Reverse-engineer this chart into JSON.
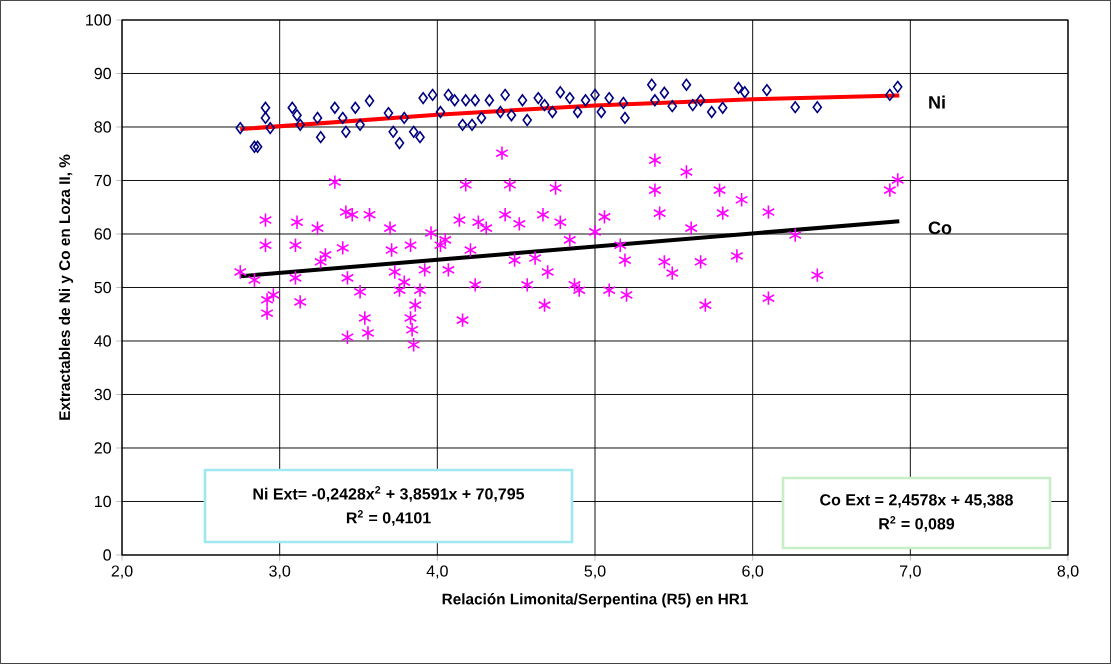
{
  "chart_data": {
    "type": "scatter",
    "xlabel": "Relación Limonita/Serpentina (R5) en HR1",
    "ylabel": "Extractables de Ni y Co en Loza II, %",
    "xlim": [
      2,
      8
    ],
    "xticks": [
      {
        "value": 2,
        "label": "2,0"
      },
      {
        "value": 3,
        "label": "3,0"
      },
      {
        "value": 4,
        "label": "4,0"
      },
      {
        "value": 5,
        "label": "5,0"
      },
      {
        "value": 6,
        "label": "6,0"
      },
      {
        "value": 7,
        "label": "7,0"
      },
      {
        "value": 8,
        "label": "8,0"
      }
    ],
    "ylim": [
      0,
      100
    ],
    "yticks": [
      0,
      10,
      20,
      30,
      40,
      50,
      60,
      70,
      80,
      90,
      100
    ],
    "grid": true,
    "series": [
      {
        "name": "Ni",
        "marker": "diamond",
        "color": "#000080",
        "x": [
          2.75,
          2.84,
          2.86,
          2.91,
          2.91,
          2.94,
          3.08,
          3.11,
          3.13,
          3.24,
          3.26,
          3.35,
          3.4,
          3.42,
          3.48,
          3.51,
          3.57,
          3.69,
          3.72,
          3.76,
          3.79,
          3.85,
          3.89,
          3.91,
          3.97,
          4.02,
          4.07,
          4.11,
          4.16,
          4.18,
          4.22,
          4.24,
          4.28,
          4.33,
          4.4,
          4.43,
          4.47,
          4.54,
          4.57,
          4.64,
          4.68,
          4.73,
          4.78,
          4.84,
          4.89,
          4.94,
          5.0,
          5.04,
          5.09,
          5.18,
          5.19,
          5.36,
          5.38,
          5.44,
          5.49,
          5.58,
          5.62,
          5.67,
          5.74,
          5.81,
          5.91,
          5.95,
          6.09,
          6.27,
          6.41,
          6.87,
          6.92
        ],
        "values": [
          79.8,
          76.3,
          76.3,
          83.6,
          81.7,
          79.8,
          83.6,
          82.2,
          80.4,
          81.7,
          78.1,
          83.6,
          81.7,
          79.1,
          83.6,
          80.4,
          84.9,
          82.6,
          79.1,
          77.0,
          81.7,
          79.1,
          78.1,
          85.4,
          86.0,
          82.8,
          86.0,
          85.0,
          80.4,
          85.0,
          80.4,
          85.0,
          81.7,
          85.0,
          82.8,
          86.0,
          82.2,
          85.0,
          81.3,
          85.4,
          84.1,
          82.8,
          86.5,
          85.4,
          82.8,
          85.0,
          86.0,
          82.8,
          85.4,
          84.5,
          81.7,
          87.9,
          85.0,
          86.4,
          83.9,
          87.9,
          84.1,
          85.0,
          82.8,
          83.6,
          87.3,
          86.5,
          86.9,
          83.7,
          83.7,
          86.0,
          87.5
        ]
      },
      {
        "type": "line",
        "color": "#ff0000",
        "marker": "none",
        "line_style": "solid",
        "x": [
          2.75,
          4.0,
          5.0,
          6.0,
          6.93
        ],
        "values": [
          79.6,
          82.3,
          84.0,
          85.2,
          85.9
        ]
      },
      {
        "name": "Co",
        "marker": "cross",
        "color": "#ff00ff",
        "x": [
          2.75,
          2.84,
          2.91,
          2.91,
          2.92,
          2.92,
          2.96,
          3.11,
          3.1,
          3.13,
          3.1,
          3.24,
          3.26,
          3.29,
          3.35,
          3.42,
          3.46,
          3.4,
          3.43,
          3.51,
          3.57,
          3.54,
          3.56,
          3.43,
          3.7,
          3.71,
          3.73,
          3.76,
          3.79,
          3.83,
          3.83,
          3.84,
          3.85,
          3.86,
          3.89,
          3.92,
          3.96,
          4.02,
          4.05,
          4.07,
          4.14,
          4.16,
          4.18,
          4.21,
          4.24,
          4.26,
          4.31,
          4.41,
          4.43,
          4.46,
          4.49,
          4.52,
          4.57,
          4.62,
          4.67,
          4.68,
          4.7,
          4.75,
          4.78,
          4.84,
          4.87,
          4.9,
          5.0,
          5.06,
          5.09,
          5.16,
          5.2,
          5.19,
          5.38,
          5.38,
          5.41,
          5.44,
          5.49,
          5.58,
          5.61,
          5.67,
          5.7,
          5.79,
          5.81,
          5.93,
          5.9,
          6.1,
          6.1,
          6.27,
          6.41,
          6.87,
          6.92
        ],
        "values": [
          52.9,
          51.4,
          62.6,
          57.9,
          47.7,
          45.2,
          48.6,
          62.2,
          57.9,
          47.3,
          51.8,
          61.1,
          54.8,
          56.1,
          69.7,
          64.1,
          63.6,
          57.4,
          51.8,
          49.2,
          63.6,
          44.3,
          41.5,
          40.7,
          61.1,
          57.0,
          52.9,
          49.5,
          51.0,
          57.9,
          44.3,
          42.1,
          39.3,
          46.7,
          49.5,
          53.3,
          60.2,
          57.9,
          58.9,
          53.3,
          62.6,
          43.9,
          69.2,
          57.0,
          50.5,
          62.2,
          61.1,
          75.1,
          63.6,
          69.2,
          55.1,
          61.9,
          50.5,
          55.5,
          63.6,
          46.7,
          52.9,
          68.6,
          62.2,
          58.9,
          50.5,
          49.5,
          60.4,
          63.2,
          49.5,
          57.9,
          48.6,
          55.1,
          73.8,
          68.2,
          63.9,
          54.8,
          52.7,
          71.6,
          61.1,
          54.8,
          46.7,
          68.2,
          63.9,
          66.4,
          55.9,
          64.1,
          48.0,
          59.8,
          52.3,
          68.2,
          70.1
        ]
      },
      {
        "type": "line",
        "color": "#000000",
        "marker": "none",
        "line_style": "solid",
        "x": [
          2.75,
          6.93
        ],
        "values": [
          52.1,
          62.4
        ]
      }
    ],
    "annotations": [
      "Ni Ext= -0,2428x$^{2}$ + 3,8591x + 70,795",
      "R$^{2}$ = 0,4101",
      "Co Ext = 2,4578x + 45,388",
      "R$^{2}$ = 0,089"
    ]
  }
}
